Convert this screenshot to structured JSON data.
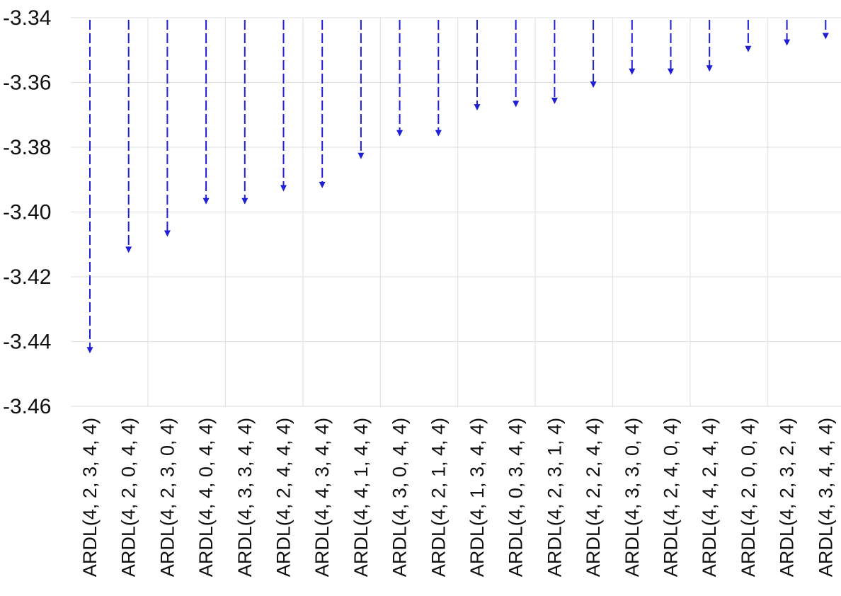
{
  "chart_data": {
    "type": "scatter",
    "categories": [
      "ARDL(4, 2, 3, 4, 4)",
      "ARDL(4, 2, 0, 4, 4)",
      "ARDL(4, 2, 3, 0, 4)",
      "ARDL(4, 4, 0, 4, 4)",
      "ARDL(4, 3, 3, 4, 4)",
      "ARDL(4, 2, 4, 4, 4)",
      "ARDL(4, 4, 3, 4, 4)",
      "ARDL(4, 4, 1, 4, 4)",
      "ARDL(4, 3, 0, 4, 4)",
      "ARDL(4, 2, 1, 4, 4)",
      "ARDL(4, 1, 3, 4, 4)",
      "ARDL(4, 0, 3, 4, 4)",
      "ARDL(4, 2, 3, 1, 4)",
      "ARDL(4, 2, 2, 4, 4)",
      "ARDL(4, 3, 3, 0, 4)",
      "ARDL(4, 2, 4, 0, 4)",
      "ARDL(4, 4, 2, 4, 4)",
      "ARDL(4, 2, 0, 0, 4)",
      "ARDL(4, 2, 3, 2, 4)",
      "ARDL(4, 3, 4, 4, 4)"
    ],
    "values": [
      -3.443,
      -3.412,
      -3.407,
      -3.397,
      -3.397,
      -3.393,
      -3.392,
      -3.383,
      -3.376,
      -3.376,
      -3.368,
      -3.367,
      -3.366,
      -3.361,
      -3.357,
      -3.357,
      -3.356,
      -3.35,
      -3.348,
      -3.346
    ],
    "ylim": [
      -3.46,
      -3.34
    ],
    "yticks": [
      -3.34,
      -3.36,
      -3.38,
      -3.4,
      -3.42,
      -3.44,
      -3.46
    ],
    "ytick_labels": [
      "-3.34",
      "-3.36",
      "-3.38",
      "-3.40",
      "-3.42",
      "-3.44",
      "-3.46"
    ],
    "title": "",
    "xlabel": "",
    "ylabel": "",
    "grid": true,
    "legend": "none",
    "colors": {
      "marker": "#1f1fd6",
      "grid": "#e3e3e3",
      "text": "#111111"
    }
  }
}
